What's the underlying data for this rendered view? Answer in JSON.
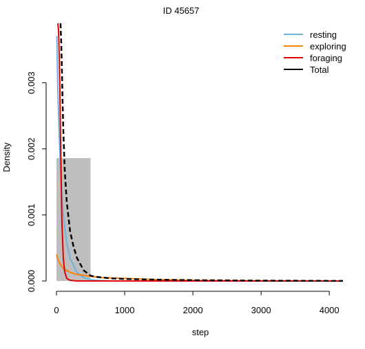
{
  "chart_data": {
    "type": "histogram",
    "title": "ID 45657",
    "xlabel": "step",
    "ylabel": "Density",
    "xlim": [
      0,
      4200
    ],
    "ylim": [
      0,
      0.0039
    ],
    "x_ticks": [
      0,
      1000,
      2000,
      3000,
      4000
    ],
    "x_tick_labels": [
      "0",
      "1000",
      "2000",
      "3000",
      "4000"
    ],
    "y_ticks": [
      0,
      0.001,
      0.002,
      0.003
    ],
    "y_tick_labels": [
      "0.000",
      "0.001",
      "0.002",
      "0.003"
    ],
    "grid": false,
    "legend_position": "top-right",
    "histogram": {
      "color": "#bebebe",
      "bins": [
        {
          "x0": 0,
          "x1": 500,
          "density": 0.00186
        }
      ]
    },
    "series": [
      {
        "name": "resting",
        "color": "#6bb5d9",
        "dash": false,
        "x": [
          0,
          5,
          10,
          20,
          40,
          60,
          80,
          100,
          150,
          200,
          300,
          400,
          500,
          600,
          800
        ],
        "y": [
          0.0037,
          0.0037,
          0.0034,
          0.0029,
          0.0022,
          0.0017,
          0.0013,
          0.001,
          0.00058,
          0.00034,
          0.00013,
          5e-05,
          2e-05,
          1e-05,
          0
        ]
      },
      {
        "name": "exploring",
        "color": "#ff7f00",
        "dash": false,
        "x": [
          0,
          20,
          50,
          100,
          200,
          300,
          500,
          700,
          1000,
          1500,
          2000,
          2500,
          3000,
          3500,
          4200
        ],
        "y": [
          0.0004,
          0.00033,
          0.00026,
          0.00019,
          0.00013,
          0.0001,
          7e-05,
          5e-05,
          4e-05,
          2e-05,
          1e-05,
          5e-06,
          2e-06,
          1e-06,
          0
        ]
      },
      {
        "name": "foraging",
        "color": "#e00000",
        "dash": false,
        "x": [
          20,
          30,
          40,
          50,
          60,
          70,
          80,
          100,
          120,
          150,
          200,
          300,
          500,
          1000,
          2000,
          3000,
          4200
        ],
        "y": [
          0.0039,
          0.0038,
          0.0034,
          0.0029,
          0.0022,
          0.0015,
          0.0009,
          0.00035,
          0.00014,
          4e-05,
          1e-05,
          0,
          0,
          0,
          0,
          0,
          0
        ]
      },
      {
        "name": "Total",
        "color": "#000000",
        "dash": true,
        "x": [
          60,
          70,
          80,
          90,
          100,
          120,
          150,
          200,
          250,
          300,
          400,
          500,
          600,
          800,
          1000,
          1500,
          2000,
          3000,
          4200
        ],
        "y": [
          0.0039,
          0.0036,
          0.0032,
          0.0027,
          0.0023,
          0.0017,
          0.0012,
          0.00075,
          0.00052,
          0.00035,
          0.00016,
          8e-05,
          6e-05,
          4e-05,
          3e-05,
          2e-05,
          1.2e-05,
          5e-06,
          1e-06
        ]
      }
    ]
  }
}
